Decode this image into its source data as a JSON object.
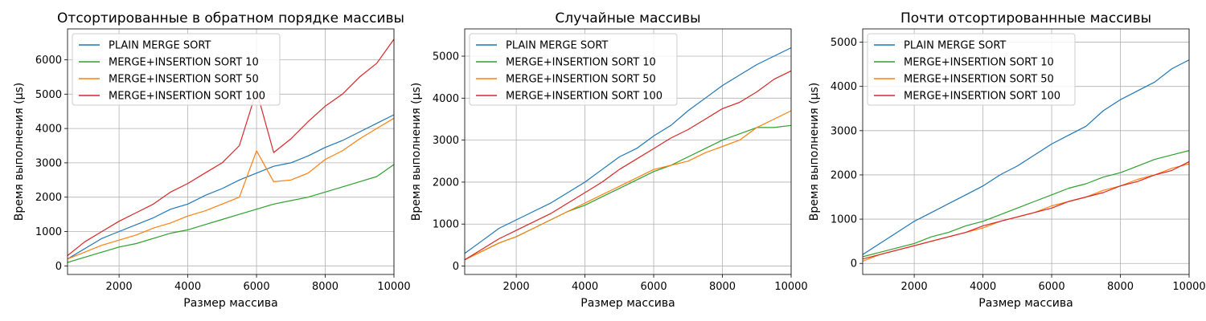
{
  "figure": {
    "xlabel": "Размер массива",
    "ylabel": "Время выполнения (μs)",
    "legend_position": "upper-left",
    "grid": true
  },
  "legend": [
    {
      "name": "PLAIN MERGE SORT",
      "color": "#1f77b4"
    },
    {
      "name": "MERGE+INSERTION SORT 10",
      "color": "#2ca02c"
    },
    {
      "name": "MERGE+INSERTION SORT 50",
      "color": "#ff7f0e"
    },
    {
      "name": "MERGE+INSERTION SORT 100",
      "color": "#d62728"
    }
  ],
  "chart_data": [
    {
      "type": "line",
      "title": "Отсортированные в обратном порядке массивы",
      "xlabel": "Размер массива",
      "ylabel": "Время выполнения (μs)",
      "xlim": [
        500,
        10000
      ],
      "ylim": [
        -250,
        6900
      ],
      "x": [
        500,
        1000,
        1500,
        2000,
        2500,
        3000,
        3500,
        4000,
        4500,
        5000,
        5500,
        6000,
        6500,
        7000,
        7500,
        8000,
        8500,
        9000,
        9500,
        10000
      ],
      "xticks": [
        2000,
        4000,
        6000,
        8000,
        10000
      ],
      "yticks": [
        0,
        1000,
        2000,
        3000,
        4000,
        5000,
        6000
      ],
      "series": [
        {
          "name": "PLAIN MERGE SORT",
          "values": [
            200,
            500,
            800,
            1000,
            1200,
            1400,
            1650,
            1800,
            2050,
            2250,
            2500,
            2700,
            2900,
            3000,
            3200,
            3450,
            3650,
            3900,
            4150,
            4400
          ]
        },
        {
          "name": "MERGE+INSERTION SORT 10",
          "values": [
            100,
            250,
            400,
            550,
            650,
            800,
            950,
            1050,
            1200,
            1350,
            1500,
            1650,
            1800,
            1900,
            2000,
            2150,
            2300,
            2450,
            2600,
            2950
          ]
        },
        {
          "name": "MERGE+INSERTION SORT 50",
          "values": [
            200,
            400,
            600,
            750,
            900,
            1100,
            1250,
            1450,
            1600,
            1800,
            2000,
            3350,
            2450,
            2500,
            2700,
            3100,
            3350,
            3700,
            4000,
            4300
          ]
        },
        {
          "name": "MERGE+INSERTION SORT 100",
          "values": [
            300,
            700,
            1000,
            1300,
            1550,
            1800,
            2150,
            2400,
            2700,
            3000,
            3500,
            5100,
            3300,
            3700,
            4200,
            4650,
            5000,
            5500,
            5900,
            6600
          ]
        }
      ]
    },
    {
      "type": "line",
      "title": "Случайные массивы",
      "xlabel": "Размер массива",
      "ylabel": "Время выполнения (μs)",
      "xlim": [
        500,
        10000
      ],
      "ylim": [
        -200,
        5650
      ],
      "x": [
        500,
        1000,
        1500,
        2000,
        2500,
        3000,
        3500,
        4000,
        4500,
        5000,
        5500,
        6000,
        6500,
        7000,
        7500,
        8000,
        8500,
        9000,
        9500,
        10000
      ],
      "xticks": [
        2000,
        4000,
        6000,
        8000,
        10000
      ],
      "yticks": [
        0,
        1000,
        2000,
        3000,
        4000,
        5000
      ],
      "series": [
        {
          "name": "PLAIN MERGE SORT",
          "values": [
            300,
            600,
            900,
            1100,
            1300,
            1500,
            1750,
            2000,
            2300,
            2600,
            2800,
            3100,
            3350,
            3700,
            4000,
            4300,
            4550,
            4800,
            5000,
            5200
          ]
        },
        {
          "name": "MERGE+INSERTION SORT 10",
          "values": [
            150,
            350,
            550,
            700,
            900,
            1100,
            1300,
            1450,
            1650,
            1850,
            2050,
            2250,
            2400,
            2600,
            2800,
            3000,
            3150,
            3300,
            3300,
            3350
          ]
        },
        {
          "name": "MERGE+INSERTION SORT 50",
          "values": [
            150,
            350,
            550,
            700,
            900,
            1100,
            1300,
            1500,
            1700,
            1900,
            2100,
            2300,
            2400,
            2500,
            2700,
            2850,
            3000,
            3300,
            3500,
            3700
          ]
        },
        {
          "name": "MERGE+INSERTION SORT 100",
          "values": [
            150,
            400,
            650,
            850,
            1050,
            1250,
            1500,
            1750,
            2000,
            2300,
            2550,
            2800,
            3050,
            3250,
            3500,
            3750,
            3900,
            4150,
            4450,
            4650
          ]
        }
      ]
    },
    {
      "type": "line",
      "title": "Почти отсортированнные массивы",
      "xlabel": "Размер массива",
      "ylabel": "Время выполнения (μs)",
      "xlim": [
        500,
        10000
      ],
      "ylim": [
        -250,
        5300
      ],
      "x": [
        500,
        1000,
        1500,
        2000,
        2500,
        3000,
        3500,
        4000,
        4500,
        5000,
        5500,
        6000,
        6500,
        7000,
        7500,
        8000,
        8500,
        9000,
        9500,
        10000
      ],
      "xticks": [
        2000,
        4000,
        6000,
        8000,
        10000
      ],
      "yticks": [
        0,
        1000,
        2000,
        3000,
        4000,
        5000
      ],
      "series": [
        {
          "name": "PLAIN MERGE SORT",
          "values": [
            200,
            450,
            700,
            950,
            1150,
            1350,
            1550,
            1750,
            2000,
            2200,
            2450,
            2700,
            2900,
            3100,
            3450,
            3700,
            3900,
            4100,
            4400,
            4600
          ]
        },
        {
          "name": "MERGE+INSERTION SORT 10",
          "values": [
            150,
            250,
            350,
            450,
            600,
            700,
            850,
            950,
            1100,
            1250,
            1400,
            1550,
            1700,
            1800,
            1950,
            2050,
            2200,
            2350,
            2450,
            2550
          ]
        },
        {
          "name": "MERGE+INSERTION SORT 50",
          "values": [
            50,
            200,
            300,
            400,
            500,
            600,
            700,
            800,
            950,
            1050,
            1150,
            1300,
            1400,
            1500,
            1650,
            1750,
            1900,
            2000,
            2150,
            2250
          ]
        },
        {
          "name": "MERGE+INSERTION SORT 100",
          "values": [
            100,
            200,
            300,
            400,
            500,
            600,
            700,
            850,
            950,
            1050,
            1150,
            1250,
            1400,
            1500,
            1600,
            1750,
            1850,
            2000,
            2100,
            2300
          ]
        }
      ]
    }
  ]
}
